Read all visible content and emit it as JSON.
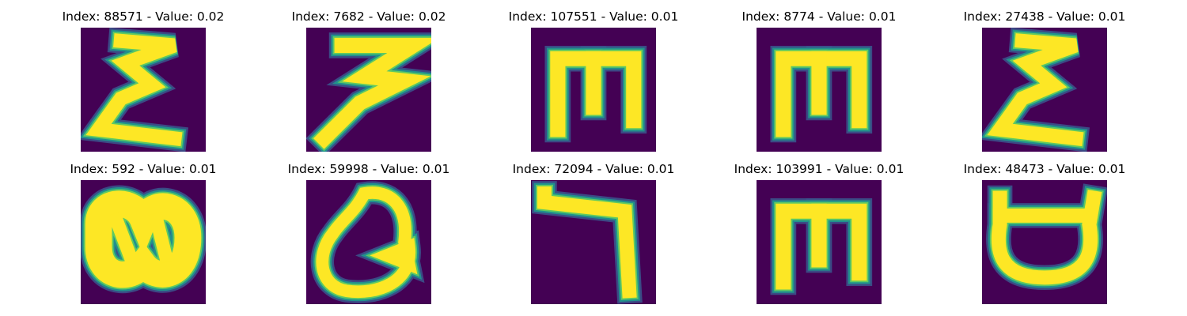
{
  "figure": {
    "background": "#ffffff",
    "colormap": "viridis",
    "panels": [
      {
        "title": "Index: 88571 - Value: 0.02",
        "glyph": "sigma-shape"
      },
      {
        "title": "Index: 7682 - Value: 0.02",
        "glyph": "three-shape"
      },
      {
        "title": "Index: 107551 - Value: 0.01",
        "glyph": "m-shape"
      },
      {
        "title": "Index: 8774 - Value: 0.01",
        "glyph": "m-shape"
      },
      {
        "title": "Index: 27438 - Value: 0.01",
        "glyph": "sigma-shape"
      },
      {
        "title": "Index: 592 - Value: 0.01",
        "glyph": "blob-shape"
      },
      {
        "title": "Index: 59998 - Value: 0.01",
        "glyph": "loop-shape"
      },
      {
        "title": "Index: 72094 - Value: 0.01",
        "glyph": "hook-shape"
      },
      {
        "title": "Index: 103991 - Value: 0.01",
        "glyph": "m-shape"
      },
      {
        "title": "Index: 48473 - Value: 0.01",
        "glyph": "cup-shape"
      }
    ]
  }
}
